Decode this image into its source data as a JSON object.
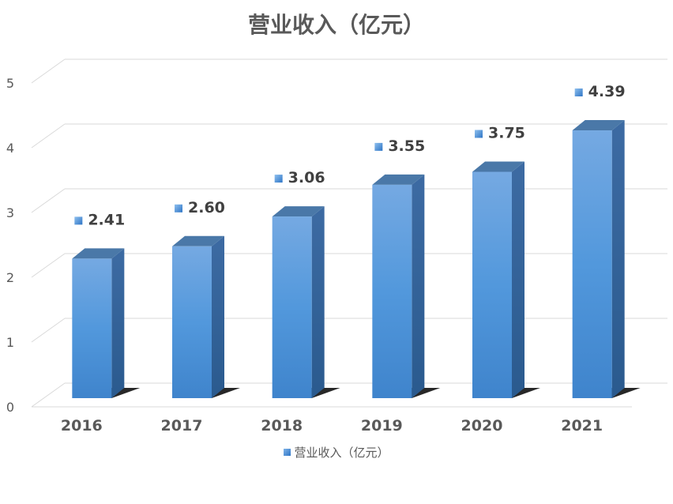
{
  "chart_data": {
    "type": "bar",
    "title": "营业收入（亿元）",
    "categories": [
      "2016",
      "2017",
      "2018",
      "2019",
      "2020",
      "2021"
    ],
    "series": [
      {
        "name": "营业收入（亿元）",
        "values": [
          2.41,
          2.6,
          3.06,
          3.55,
          3.75,
          4.39
        ]
      }
    ],
    "data_labels": [
      "2.41",
      "2.60",
      "3.06",
      "3.55",
      "3.75",
      "4.39"
    ],
    "y_ticks": [
      "0",
      "1",
      "2",
      "3",
      "4",
      "5"
    ],
    "ylim": [
      0,
      5
    ],
    "grid": true,
    "legend_position": "bottom",
    "style": "3d-column",
    "colors": {
      "bar": "#5b9bd5",
      "bar_side": "#2f5f95",
      "bar_top": "#4a78a8",
      "grid": "#d9d9d9",
      "text": "#595959"
    }
  }
}
